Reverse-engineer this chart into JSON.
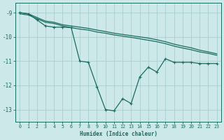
{
  "xlabel": "Humidex (Indice chaleur)",
  "bg_color": "#cce8e8",
  "grid_color": "#aacfcf",
  "line_color": "#1a6b60",
  "xlim": [
    -0.5,
    23.5
  ],
  "ylim": [
    -13.5,
    -8.6
  ],
  "xticks": [
    0,
    1,
    2,
    3,
    4,
    5,
    6,
    7,
    8,
    9,
    10,
    11,
    12,
    13,
    14,
    15,
    16,
    17,
    18,
    19,
    20,
    21,
    22,
    23
  ],
  "yticks": [
    -9,
    -10,
    -11,
    -12,
    -13
  ],
  "line1_x": [
    0,
    1,
    2,
    3,
    4,
    5,
    6,
    7,
    8,
    9,
    10,
    11,
    12,
    13,
    14,
    15,
    16,
    17,
    18,
    19,
    20,
    21,
    22,
    23
  ],
  "line1_y": [
    -9.0,
    -9.05,
    -9.2,
    -9.35,
    -9.4,
    -9.5,
    -9.55,
    -9.6,
    -9.65,
    -9.72,
    -9.78,
    -9.85,
    -9.9,
    -9.95,
    -10.0,
    -10.05,
    -10.12,
    -10.2,
    -10.3,
    -10.38,
    -10.45,
    -10.55,
    -10.62,
    -10.7
  ],
  "line2_x": [
    0,
    1,
    2,
    3,
    4,
    5,
    6,
    7,
    8,
    9,
    10,
    11,
    12,
    13,
    14,
    15,
    16,
    17,
    18,
    19,
    20,
    21,
    22,
    23
  ],
  "line2_y": [
    -9.05,
    -9.1,
    -9.25,
    -9.4,
    -9.45,
    -9.55,
    -9.62,
    -9.68,
    -9.72,
    -9.8,
    -9.85,
    -9.92,
    -9.97,
    -10.02,
    -10.08,
    -10.14,
    -10.2,
    -10.28,
    -10.38,
    -10.46,
    -10.53,
    -10.62,
    -10.68,
    -10.76
  ],
  "line3_x": [
    0,
    1,
    2,
    3,
    4,
    5,
    6,
    7,
    8,
    9,
    10,
    11,
    12,
    13,
    14,
    15,
    16,
    17,
    18,
    19,
    20,
    21,
    22,
    23
  ],
  "line3_y": [
    -9.0,
    -9.05,
    -9.3,
    -9.55,
    -9.6,
    -9.6,
    -9.62,
    -11.0,
    -11.05,
    -12.05,
    -13.0,
    -13.05,
    -12.55,
    -12.75,
    -11.65,
    -11.25,
    -11.45,
    -10.9,
    -11.05,
    -11.05,
    -11.05,
    -11.1,
    -11.1,
    -11.1
  ]
}
